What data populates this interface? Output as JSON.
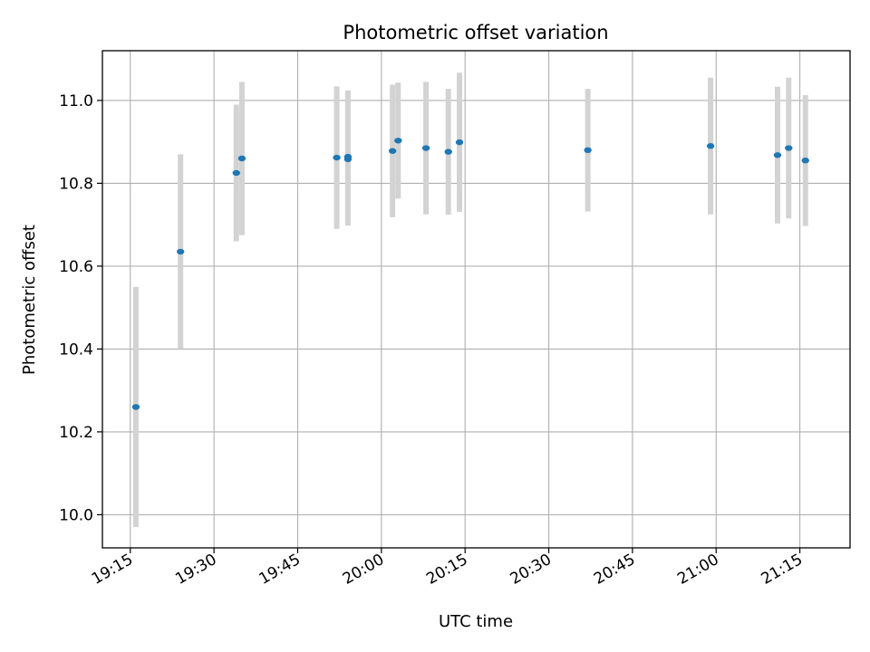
{
  "chart_data": {
    "type": "scatter",
    "title": "Photometric offset variation",
    "xlabel": "UTC time",
    "ylabel": "Photometric offset",
    "x_unit": "minutes",
    "xlim": [
      "19:10",
      "21:24"
    ],
    "ylim": [
      9.92,
      11.12
    ],
    "x_ticks": [
      "19:15",
      "19:30",
      "19:45",
      "20:00",
      "20:15",
      "20:30",
      "20:45",
      "21:00",
      "21:15"
    ],
    "y_ticks": [
      "10.0",
      "10.2",
      "10.4",
      "10.6",
      "10.8",
      "11.0"
    ],
    "grid": true,
    "colors": {
      "points": "#1f77b4",
      "error_bars": "#d3d3d3",
      "grid": "#b0b0b0",
      "axes": "#000000"
    },
    "series": [
      {
        "points": [
          {
            "x": "19:16",
            "y": 10.26,
            "err": 0.29
          },
          {
            "x": "19:24",
            "y": 10.635,
            "err": 0.235
          },
          {
            "x": "19:34",
            "y": 10.825,
            "err": 0.165
          },
          {
            "x": "19:35",
            "y": 10.86,
            "err": 0.185
          },
          {
            "x": "19:52",
            "y": 10.862,
            "err": 0.172
          },
          {
            "x": "19:54",
            "y": 10.858,
            "err": 0.16
          },
          {
            "x": "19:54",
            "y": 10.864,
            "err": 0.16
          },
          {
            "x": "20:02",
            "y": 10.878,
            "err": 0.16
          },
          {
            "x": "20:03",
            "y": 10.903,
            "err": 0.14
          },
          {
            "x": "20:08",
            "y": 10.885,
            "err": 0.16
          },
          {
            "x": "20:12",
            "y": 10.876,
            "err": 0.152
          },
          {
            "x": "20:14",
            "y": 10.899,
            "err": 0.168
          },
          {
            "x": "20:37",
            "y": 10.88,
            "err": 0.148
          },
          {
            "x": "20:59",
            "y": 10.89,
            "err": 0.165
          },
          {
            "x": "21:11",
            "y": 10.868,
            "err": 0.165
          },
          {
            "x": "21:13",
            "y": 10.885,
            "err": 0.17
          },
          {
            "x": "21:16",
            "y": 10.855,
            "err": 0.158
          }
        ]
      }
    ]
  }
}
